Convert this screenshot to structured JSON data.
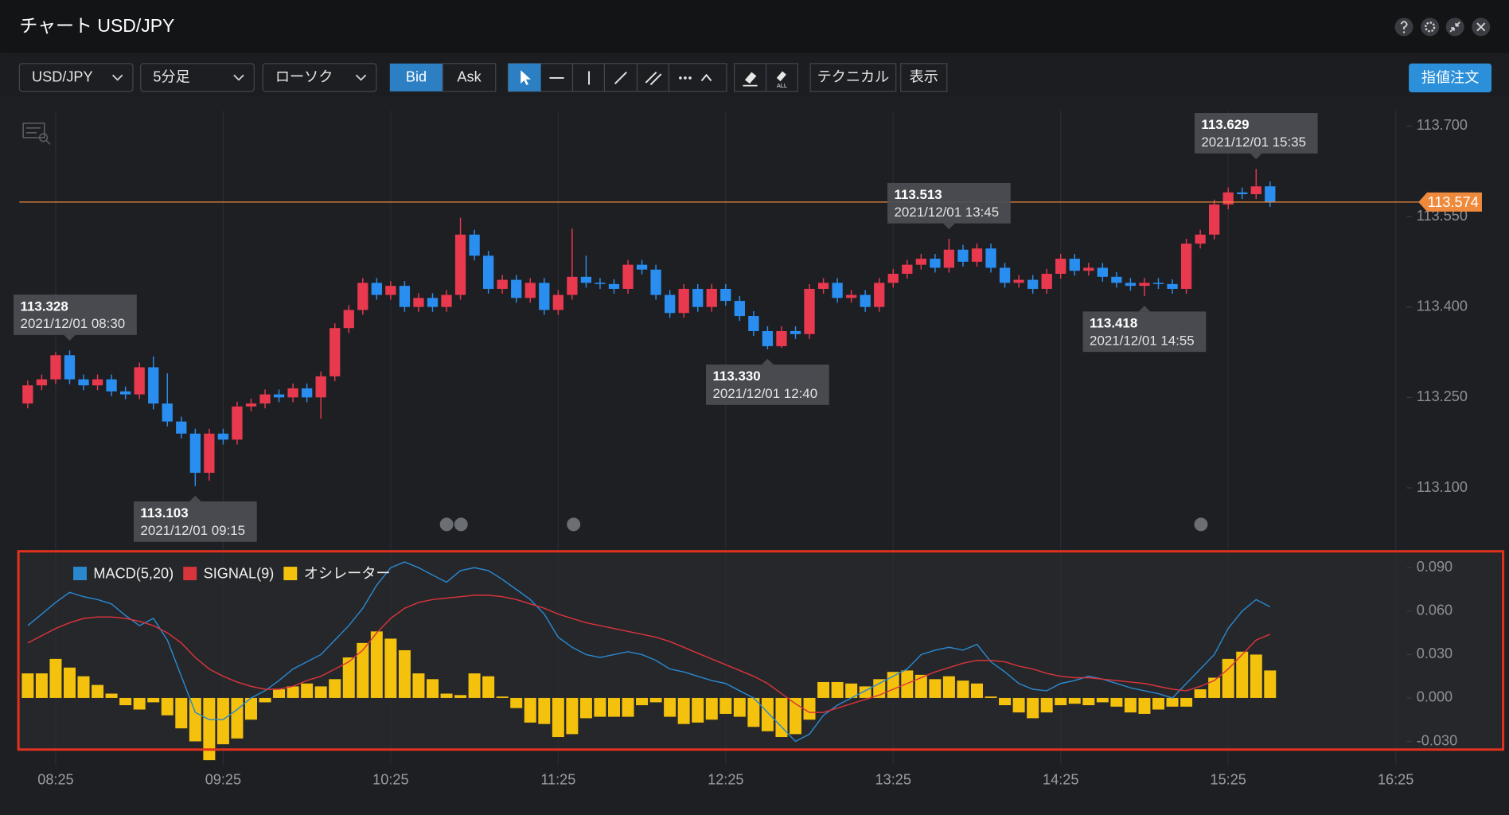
{
  "window": {
    "title": "チャート USD/JPY"
  },
  "toolbar": {
    "symbol": "USD/JPY",
    "interval": "5分足",
    "chart_type": "ローソク",
    "bid": "Bid",
    "ask": "Ask",
    "eraser_all": "ALL",
    "technical": "テクニカル",
    "display": "表示",
    "order": "指値注文"
  },
  "chart_data": {
    "type": "candlestick",
    "up_color": "#e8394f",
    "down_color": "#2a8ef0",
    "grid": true,
    "x": [
      "08:15",
      "08:20",
      "08:25",
      "08:30",
      "08:35",
      "08:40",
      "08:45",
      "08:50",
      "08:55",
      "09:00",
      "09:05",
      "09:10",
      "09:15",
      "09:20",
      "09:25",
      "09:30",
      "09:35",
      "09:40",
      "09:45",
      "09:50",
      "09:55",
      "10:00",
      "10:05",
      "10:10",
      "10:15",
      "10:20",
      "10:25",
      "10:30",
      "10:35",
      "10:40",
      "10:45",
      "10:50",
      "10:55",
      "11:00",
      "11:05",
      "11:10",
      "11:15",
      "11:20",
      "11:25",
      "11:30",
      "11:35",
      "11:40",
      "11:45",
      "11:50",
      "11:55",
      "12:00",
      "12:05",
      "12:10",
      "12:15",
      "12:20",
      "12:25",
      "12:30",
      "12:35",
      "12:40",
      "12:45",
      "12:50",
      "12:55",
      "13:00",
      "13:05",
      "13:10",
      "13:15",
      "13:20",
      "13:25",
      "13:30",
      "13:35",
      "13:40",
      "13:45",
      "13:50",
      "13:55",
      "14:00",
      "14:05",
      "14:10",
      "14:15",
      "14:20",
      "14:25",
      "14:30",
      "14:35",
      "14:40",
      "14:45",
      "14:50",
      "14:55",
      "15:00",
      "15:05",
      "15:10",
      "15:15",
      "15:20",
      "15:25",
      "15:30",
      "15:35",
      "15:40"
    ],
    "xlim": [
      "08:12",
      "16:29"
    ],
    "xticks": [
      "08:25",
      "09:25",
      "10:25",
      "11:25",
      "12:25",
      "13:25",
      "14:25",
      "15:25",
      "16:25"
    ],
    "open": [
      113.24,
      113.27,
      113.28,
      113.32,
      113.28,
      113.27,
      113.28,
      113.26,
      113.255,
      113.3,
      113.24,
      113.21,
      113.19,
      113.125,
      113.19,
      113.18,
      113.235,
      113.24,
      113.255,
      113.25,
      113.265,
      113.25,
      113.285,
      113.365,
      113.395,
      113.44,
      113.42,
      113.435,
      113.4,
      113.415,
      113.4,
      113.42,
      113.52,
      113.485,
      113.43,
      113.445,
      113.415,
      113.44,
      113.395,
      113.42,
      113.45,
      113.44,
      113.438,
      113.43,
      113.47,
      113.462,
      113.42,
      113.39,
      113.43,
      113.4,
      113.43,
      113.41,
      113.385,
      113.36,
      113.335,
      113.36,
      113.355,
      113.43,
      113.44,
      113.415,
      113.42,
      113.4,
      113.44,
      113.455,
      113.47,
      113.48,
      113.465,
      113.495,
      113.475,
      113.497,
      113.465,
      113.44,
      113.445,
      113.43,
      113.455,
      113.48,
      113.46,
      113.465,
      113.45,
      113.44,
      113.435,
      113.44,
      113.438,
      113.43,
      113.505,
      113.52,
      113.57,
      113.59,
      113.587,
      113.6
    ],
    "high": [
      113.278,
      113.288,
      113.325,
      113.328,
      113.288,
      113.288,
      113.288,
      113.268,
      113.308,
      113.318,
      113.29,
      113.218,
      113.198,
      113.198,
      113.198,
      113.243,
      113.248,
      113.263,
      113.263,
      113.273,
      113.273,
      113.293,
      113.373,
      113.403,
      113.448,
      113.448,
      113.443,
      113.443,
      113.423,
      113.423,
      113.428,
      113.548,
      113.528,
      113.493,
      113.453,
      113.453,
      113.448,
      113.448,
      113.428,
      113.53,
      113.485,
      113.448,
      113.446,
      113.478,
      113.478,
      113.47,
      113.428,
      113.438,
      113.438,
      113.438,
      113.438,
      113.418,
      113.393,
      113.368,
      113.368,
      113.368,
      113.438,
      113.448,
      113.448,
      113.428,
      113.428,
      113.448,
      113.463,
      113.478,
      113.488,
      113.488,
      113.513,
      113.503,
      113.505,
      113.505,
      113.473,
      113.453,
      113.453,
      113.463,
      113.488,
      113.488,
      113.473,
      113.473,
      113.458,
      113.448,
      113.448,
      113.448,
      113.446,
      113.513,
      113.528,
      113.578,
      113.598,
      113.598,
      113.629,
      113.608
    ],
    "low": [
      113.232,
      113.262,
      113.272,
      113.272,
      113.262,
      113.262,
      113.252,
      113.247,
      113.247,
      113.23,
      113.202,
      113.182,
      113.103,
      113.112,
      113.172,
      113.172,
      113.227,
      113.232,
      113.242,
      113.242,
      113.242,
      113.215,
      113.277,
      113.357,
      113.387,
      113.412,
      113.412,
      113.392,
      113.392,
      113.392,
      113.392,
      113.412,
      113.477,
      113.422,
      113.422,
      113.407,
      113.407,
      113.387,
      113.387,
      113.412,
      113.432,
      113.43,
      113.422,
      113.422,
      113.454,
      113.412,
      113.382,
      113.382,
      113.392,
      113.392,
      113.402,
      113.377,
      113.352,
      113.33,
      113.332,
      113.347,
      113.347,
      113.422,
      113.407,
      113.407,
      113.392,
      113.392,
      113.432,
      113.447,
      113.462,
      113.457,
      113.457,
      113.467,
      113.467,
      113.457,
      113.432,
      113.432,
      113.422,
      113.422,
      113.447,
      113.452,
      113.452,
      113.442,
      113.432,
      113.427,
      113.418,
      113.43,
      113.422,
      113.422,
      113.497,
      113.512,
      113.562,
      113.579,
      113.579,
      113.566
    ],
    "close": [
      113.27,
      113.28,
      113.32,
      113.28,
      113.27,
      113.28,
      113.26,
      113.255,
      113.3,
      113.24,
      113.21,
      113.19,
      113.125,
      113.19,
      113.18,
      113.235,
      113.24,
      113.255,
      113.25,
      113.265,
      113.25,
      113.285,
      113.365,
      113.395,
      113.44,
      113.42,
      113.435,
      113.4,
      113.415,
      113.4,
      113.42,
      113.52,
      113.485,
      113.43,
      113.445,
      113.415,
      113.44,
      113.395,
      113.42,
      113.45,
      113.44,
      113.438,
      113.43,
      113.47,
      113.462,
      113.42,
      113.39,
      113.43,
      113.4,
      113.43,
      113.41,
      113.385,
      113.36,
      113.335,
      113.36,
      113.355,
      113.43,
      113.44,
      113.415,
      113.42,
      113.4,
      113.44,
      113.455,
      113.47,
      113.48,
      113.465,
      113.495,
      113.475,
      113.497,
      113.465,
      113.44,
      113.445,
      113.43,
      113.455,
      113.48,
      113.46,
      113.465,
      113.45,
      113.44,
      113.435,
      113.44,
      113.438,
      113.43,
      113.505,
      113.52,
      113.57,
      113.59,
      113.587,
      113.6,
      113.574
    ],
    "ylim": [
      113.0,
      113.73
    ],
    "yticks": [
      {
        "value": 113.7,
        "label": "113.700"
      },
      {
        "value": 113.55,
        "label": "113.550"
      },
      {
        "value": 113.4,
        "label": "113.400"
      },
      {
        "value": 113.25,
        "label": "113.250"
      },
      {
        "value": 113.1,
        "label": "113.100"
      }
    ],
    "last_price": {
      "value": 113.574,
      "color": "#ef8a3c"
    },
    "annotations": [
      {
        "price": 113.328,
        "datetime": "2021/12/01 08:30",
        "side": "high"
      },
      {
        "price": 113.103,
        "datetime": "2021/12/01 09:15",
        "side": "low"
      },
      {
        "price": {
          "value": 113.33,
          "label": "113.330"
        },
        "datetime": "2021/12/01 12:40",
        "side": "low"
      },
      {
        "price": 113.513,
        "datetime": "2021/12/01 13:45",
        "side": "high"
      },
      {
        "price": 113.418,
        "datetime": "2021/12/01 14:55",
        "side": "low"
      },
      {
        "price": 113.629,
        "datetime": "2021/12/01 15:35",
        "side": "high"
      }
    ],
    "indicator": {
      "ylim": [
        -0.035,
        0.1
      ],
      "yticks": [
        {
          "value": 0.09,
          "label": "0.090"
        },
        {
          "value": 0.06,
          "label": "0.060"
        },
        {
          "value": 0.03,
          "label": "0.030"
        },
        {
          "value": 0,
          "label": "0.000"
        },
        {
          "value": -0.03,
          "label": "-0.030"
        }
      ],
      "series": [
        {
          "name": "MACD(5,20)",
          "type": "line",
          "color": "#2a88cf",
          "values": [
            0.05,
            0.058,
            0.066,
            0.073,
            0.07,
            0.068,
            0.065,
            0.057,
            0.05,
            0.055,
            0.04,
            0.015,
            -0.01,
            -0.015,
            -0.015,
            -0.008,
            0,
            0.005,
            0.012,
            0.02,
            0.025,
            0.03,
            0.04,
            0.05,
            0.062,
            0.078,
            0.09,
            0.094,
            0.09,
            0.085,
            0.08,
            0.088,
            0.09,
            0.088,
            0.082,
            0.075,
            0.068,
            0.058,
            0.042,
            0.035,
            0.03,
            0.028,
            0.03,
            0.032,
            0.03,
            0.026,
            0.02,
            0.018,
            0.015,
            0.012,
            0.01,
            0.005,
            0,
            -0.01,
            -0.02,
            -0.03,
            -0.025,
            -0.012,
            -0.005,
            0,
            0.005,
            0.01,
            0.015,
            0.02,
            0.03,
            0.033,
            0.035,
            0.033,
            0.037,
            0.025,
            0.018,
            0.01,
            0.006,
            0.005,
            0.01,
            0.012,
            0.015,
            0.013,
            0.01,
            0.007,
            0.005,
            0.003,
            0,
            0.01,
            0.02,
            0.03,
            0.048,
            0.06,
            0.068,
            0.063
          ]
        },
        {
          "name": "SIGNAL(9)",
          "type": "line",
          "color": "#d8343c",
          "values": [
            0.038,
            0.043,
            0.048,
            0.052,
            0.055,
            0.056,
            0.056,
            0.055,
            0.053,
            0.05,
            0.045,
            0.038,
            0.028,
            0.02,
            0.015,
            0.011,
            0.008,
            0.006,
            0.006,
            0.008,
            0.012,
            0.015,
            0.02,
            0.025,
            0.033,
            0.045,
            0.055,
            0.062,
            0.066,
            0.068,
            0.069,
            0.07,
            0.071,
            0.071,
            0.07,
            0.068,
            0.065,
            0.062,
            0.058,
            0.055,
            0.052,
            0.05,
            0.048,
            0.046,
            0.044,
            0.042,
            0.039,
            0.035,
            0.031,
            0.027,
            0.023,
            0.019,
            0.015,
            0.01,
            0.003,
            -0.004,
            -0.01,
            -0.01,
            -0.007,
            -0.004,
            -0.001,
            0.002,
            0.006,
            0.01,
            0.014,
            0.018,
            0.021,
            0.024,
            0.026,
            0.026,
            0.025,
            0.022,
            0.02,
            0.017,
            0.015,
            0.014,
            0.014,
            0.013,
            0.012,
            0.011,
            0.01,
            0.008,
            0.006,
            0.005,
            0.008,
            0.012,
            0.02,
            0.03,
            0.04,
            0.044
          ]
        },
        {
          "name": "オシレーター",
          "type": "bar",
          "color": "#f4c20d",
          "values": [
            0.017,
            0.017,
            0.027,
            0.021,
            0.015,
            0.009,
            0.003,
            -0.005,
            -0.008,
            -0.003,
            -0.012,
            -0.021,
            -0.03,
            -0.043,
            -0.032,
            -0.028,
            -0.015,
            -0.003,
            0.006,
            0.008,
            0.01,
            0.008,
            0.013,
            0.028,
            0.038,
            0.046,
            0.041,
            0.033,
            0.017,
            0.013,
            0.003,
            0.002,
            0.017,
            0.015,
            0.001,
            -0.007,
            -0.017,
            -0.018,
            -0.027,
            -0.025,
            -0.014,
            -0.013,
            -0.013,
            -0.013,
            -0.005,
            -0.003,
            -0.013,
            -0.018,
            -0.017,
            -0.015,
            -0.011,
            -0.013,
            -0.02,
            -0.023,
            -0.027,
            -0.025,
            -0.015,
            0.011,
            0.011,
            0.01,
            0.008,
            0.013,
            0.018,
            0.019,
            0.016,
            0.013,
            0.015,
            0.012,
            0.01,
            0.001,
            -0.005,
            -0.01,
            -0.014,
            -0.01,
            -0.005,
            -0.004,
            -0.005,
            -0.003,
            -0.006,
            -0.01,
            -0.011,
            -0.008,
            -0.006,
            -0.006,
            0.006,
            0.014,
            0.027,
            0.032,
            0.03,
            0.019
          ]
        }
      ]
    }
  }
}
